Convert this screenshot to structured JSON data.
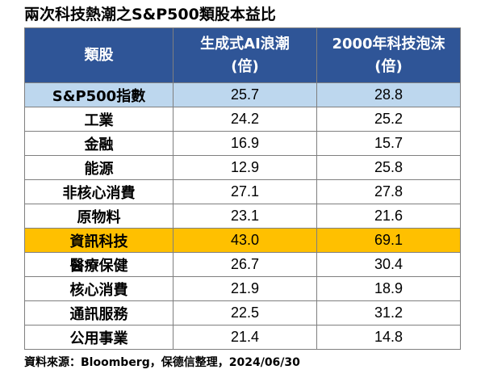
{
  "title": "兩次科技熱潮之S&P500類股本益比",
  "table": {
    "headers": [
      {
        "line1": "類股",
        "line2": ""
      },
      {
        "line1": "生成式AI浪潮",
        "line2": "(倍)"
      },
      {
        "line1": "2000年科技泡沫",
        "line2": "(倍)"
      }
    ],
    "rows": [
      {
        "sector": "S&P500指數",
        "ai": "25.7",
        "dotcom": "28.8",
        "highlight": "blue"
      },
      {
        "sector": "工業",
        "ai": "24.2",
        "dotcom": "25.2",
        "highlight": ""
      },
      {
        "sector": "金融",
        "ai": "16.9",
        "dotcom": "15.7",
        "highlight": ""
      },
      {
        "sector": "能源",
        "ai": "12.9",
        "dotcom": "25.8",
        "highlight": ""
      },
      {
        "sector": "非核心消費",
        "ai": "27.1",
        "dotcom": "27.8",
        "highlight": ""
      },
      {
        "sector": "原物料",
        "ai": "23.1",
        "dotcom": "21.6",
        "highlight": ""
      },
      {
        "sector": "資訊科技",
        "ai": "43.0",
        "dotcom": "69.1",
        "highlight": "gold"
      },
      {
        "sector": "醫療保健",
        "ai": "26.7",
        "dotcom": "30.4",
        "highlight": ""
      },
      {
        "sector": "核心消費",
        "ai": "21.9",
        "dotcom": "18.9",
        "highlight": ""
      },
      {
        "sector": "通訊服務",
        "ai": "22.5",
        "dotcom": "31.2",
        "highlight": ""
      },
      {
        "sector": "公用事業",
        "ai": "21.4",
        "dotcom": "14.8",
        "highlight": ""
      }
    ]
  },
  "source": "資料來源：Bloomberg，保德信整理，2024/06/30",
  "colors": {
    "header_bg": "#2f5597",
    "header_text": "#ffffff",
    "index_row_bg": "#bdd7ee",
    "tech_row_bg": "#ffc000",
    "border": "#7f7f7f"
  }
}
